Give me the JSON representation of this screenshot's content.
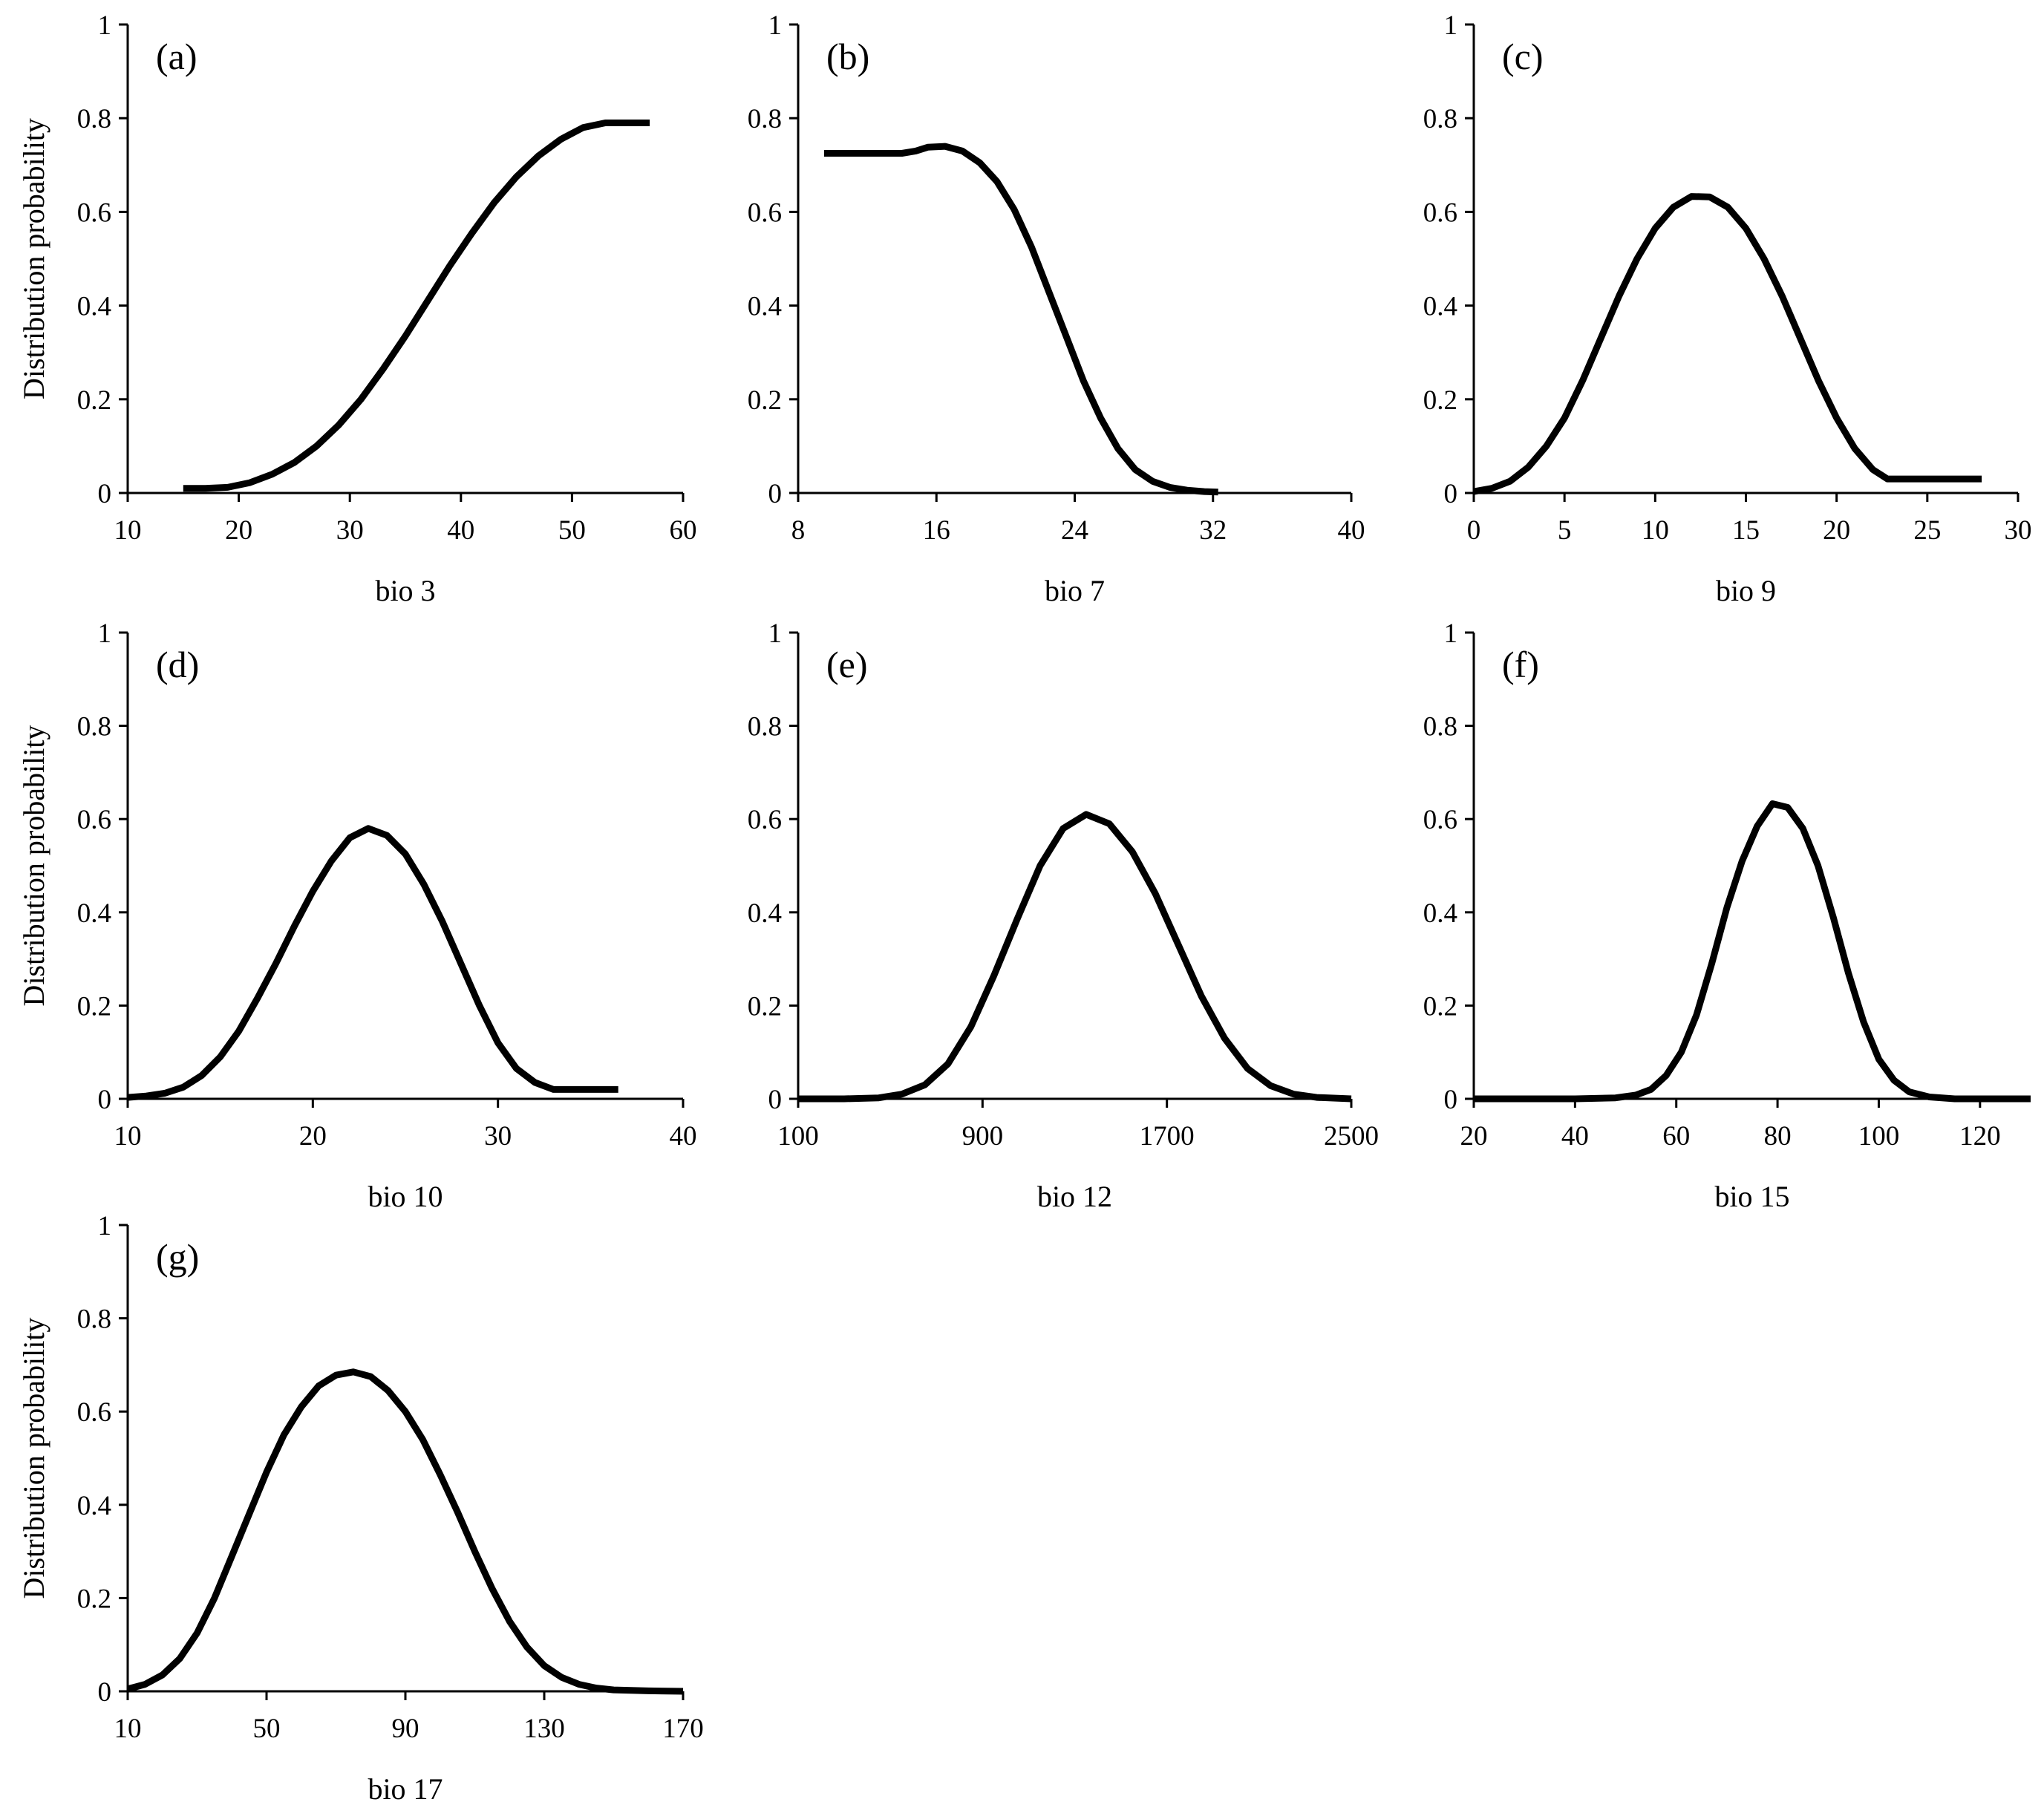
{
  "chart_data": [
    {
      "type": "line",
      "panel_label": "(a)",
      "xlabel": "bio 3",
      "ylabel": "Distribution probability",
      "xlim": [
        10,
        60
      ],
      "ylim": [
        0,
        1
      ],
      "xticks": [
        10,
        20,
        30,
        40,
        50,
        60
      ],
      "yticks": [
        0,
        0.2,
        0.4,
        0.6,
        0.8,
        1
      ],
      "xtick_labels": [
        "10",
        "20",
        "30",
        "40",
        "50",
        "60"
      ],
      "ytick_labels": [
        "0",
        "0.2",
        "0.4",
        "0.6",
        "0.8",
        "1"
      ],
      "x": [
        15,
        17,
        19,
        21,
        23,
        25,
        27,
        29,
        31,
        33,
        35,
        37,
        39,
        41,
        43,
        45,
        47,
        49,
        51,
        53,
        55,
        57
      ],
      "y": [
        0.01,
        0.01,
        0.012,
        0.022,
        0.04,
        0.065,
        0.1,
        0.145,
        0.2,
        0.265,
        0.335,
        0.41,
        0.485,
        0.555,
        0.62,
        0.675,
        0.72,
        0.755,
        0.78,
        0.79,
        0.79,
        0.79
      ]
    },
    {
      "type": "line",
      "panel_label": "(b)",
      "xlabel": "bio 7",
      "ylabel": "",
      "xlim": [
        8,
        40
      ],
      "ylim": [
        0,
        1
      ],
      "xticks": [
        8,
        16,
        24,
        32,
        40
      ],
      "yticks": [
        0,
        0.2,
        0.4,
        0.6,
        0.8,
        1
      ],
      "xtick_labels": [
        "8",
        "16",
        "24",
        "32",
        "40"
      ],
      "ytick_labels": [
        "0",
        "0.2",
        "0.4",
        "0.6",
        "0.8",
        "1"
      ],
      "x": [
        9.5,
        12,
        14,
        14.8,
        15.5,
        16.5,
        17.5,
        18.5,
        19.5,
        20.5,
        21.5,
        22.5,
        23.5,
        24.5,
        25.5,
        26.5,
        27.5,
        28.5,
        29.5,
        30.5,
        31.5,
        32.3
      ],
      "y": [
        0.725,
        0.725,
        0.725,
        0.73,
        0.738,
        0.74,
        0.73,
        0.705,
        0.665,
        0.605,
        0.525,
        0.43,
        0.335,
        0.24,
        0.16,
        0.095,
        0.05,
        0.025,
        0.012,
        0.006,
        0.003,
        0.002
      ]
    },
    {
      "type": "line",
      "panel_label": "(c)",
      "xlabel": "bio 9",
      "ylabel": "",
      "xlim": [
        0,
        30
      ],
      "ylim": [
        0,
        1
      ],
      "xticks": [
        0,
        5,
        10,
        15,
        20,
        25,
        30
      ],
      "yticks": [
        0,
        0.2,
        0.4,
        0.6,
        0.8,
        1
      ],
      "xtick_labels": [
        "0",
        "5",
        "10",
        "15",
        "20",
        "25",
        "30"
      ],
      "ytick_labels": [
        "0",
        "0.2",
        "0.4",
        "0.6",
        "0.8",
        "1"
      ],
      "x": [
        0,
        1,
        2,
        3,
        4,
        5,
        6,
        7,
        8,
        9,
        10,
        11,
        12,
        13,
        14,
        15,
        16,
        17,
        18,
        19,
        20,
        21,
        22,
        22.8,
        25,
        28
      ],
      "y": [
        0.003,
        0.01,
        0.025,
        0.055,
        0.1,
        0.16,
        0.24,
        0.33,
        0.42,
        0.5,
        0.565,
        0.61,
        0.633,
        0.632,
        0.61,
        0.565,
        0.5,
        0.42,
        0.33,
        0.24,
        0.16,
        0.095,
        0.05,
        0.03,
        0.03,
        0.03
      ]
    },
    {
      "type": "line",
      "panel_label": "(d)",
      "xlabel": "bio 10",
      "ylabel": "Distribution probability",
      "xlim": [
        10,
        40
      ],
      "ylim": [
        0,
        1
      ],
      "xticks": [
        10,
        20,
        30,
        40
      ],
      "yticks": [
        0,
        0.2,
        0.4,
        0.6,
        0.8,
        1
      ],
      "xtick_labels": [
        "10",
        "20",
        "30",
        "40"
      ],
      "ytick_labels": [
        "0",
        "0.2",
        "0.4",
        "0.6",
        "0.8",
        "1"
      ],
      "x": [
        10,
        11,
        12,
        13,
        14,
        15,
        16,
        17,
        18,
        19,
        20,
        21,
        22,
        23,
        24,
        25,
        26,
        27,
        28,
        29,
        30,
        31,
        32,
        33,
        34,
        35,
        36.5
      ],
      "y": [
        0.003,
        0.006,
        0.012,
        0.025,
        0.05,
        0.09,
        0.145,
        0.215,
        0.29,
        0.37,
        0.445,
        0.51,
        0.56,
        0.58,
        0.565,
        0.525,
        0.46,
        0.38,
        0.29,
        0.2,
        0.12,
        0.065,
        0.035,
        0.02,
        0.02,
        0.02,
        0.02
      ]
    },
    {
      "type": "line",
      "panel_label": "(e)",
      "xlabel": "bio 12",
      "ylabel": "",
      "xlim": [
        100,
        2500
      ],
      "ylim": [
        0,
        1
      ],
      "xticks": [
        100,
        900,
        1700,
        2500
      ],
      "yticks": [
        0,
        0.2,
        0.4,
        0.6,
        0.8,
        1
      ],
      "xtick_labels": [
        "100",
        "900",
        "1700",
        "2500"
      ],
      "ytick_labels": [
        "0",
        "0.2",
        "0.4",
        "0.6",
        "0.8",
        "1"
      ],
      "x": [
        100,
        300,
        450,
        550,
        650,
        750,
        850,
        950,
        1050,
        1150,
        1250,
        1350,
        1450,
        1550,
        1650,
        1750,
        1850,
        1950,
        2050,
        2150,
        2250,
        2350,
        2500
      ],
      "y": [
        0,
        0,
        0.002,
        0.01,
        0.03,
        0.075,
        0.155,
        0.265,
        0.385,
        0.5,
        0.58,
        0.61,
        0.59,
        0.53,
        0.44,
        0.33,
        0.22,
        0.13,
        0.065,
        0.028,
        0.01,
        0.003,
        0
      ]
    },
    {
      "type": "line",
      "panel_label": "(f)",
      "xlabel": "bio 15",
      "ylabel": "",
      "xlim": [
        20,
        130
      ],
      "ylim": [
        0,
        1
      ],
      "xticks": [
        20,
        40,
        60,
        80,
        100,
        120
      ],
      "yticks": [
        0,
        0.2,
        0.4,
        0.6,
        0.8,
        1
      ],
      "xtick_labels": [
        "20",
        "40",
        "60",
        "80",
        "100",
        "120"
      ],
      "ytick_labels": [
        "0",
        "0.2",
        "0.4",
        "0.6",
        "0.8",
        "1"
      ],
      "x": [
        20,
        40,
        48,
        52,
        55,
        58,
        61,
        64,
        67,
        70,
        73,
        76,
        79,
        82,
        85,
        88,
        91,
        94,
        97,
        100,
        103,
        106,
        110,
        115,
        130
      ],
      "y": [
        0,
        0,
        0.002,
        0.008,
        0.02,
        0.05,
        0.1,
        0.18,
        0.29,
        0.41,
        0.51,
        0.585,
        0.633,
        0.625,
        0.58,
        0.5,
        0.39,
        0.27,
        0.165,
        0.085,
        0.04,
        0.015,
        0.004,
        0,
        0
      ]
    },
    {
      "type": "line",
      "panel_label": "(g)",
      "xlabel": "bio 17",
      "ylabel": "Distribution probability",
      "xlim": [
        10,
        170
      ],
      "ylim": [
        0,
        1
      ],
      "xticks": [
        10,
        50,
        90,
        130,
        170
      ],
      "yticks": [
        0,
        0.2,
        0.4,
        0.6,
        0.8,
        1
      ],
      "xtick_labels": [
        "10",
        "50",
        "90",
        "130",
        "170"
      ],
      "ytick_labels": [
        "0",
        "0.2",
        "0.4",
        "0.6",
        "0.8",
        "1"
      ],
      "x": [
        10,
        15,
        20,
        25,
        30,
        35,
        40,
        45,
        50,
        55,
        60,
        65,
        70,
        75,
        80,
        85,
        90,
        95,
        100,
        105,
        110,
        115,
        120,
        125,
        130,
        135,
        140,
        145,
        150,
        160,
        170
      ],
      "y": [
        0.005,
        0.015,
        0.035,
        0.07,
        0.125,
        0.2,
        0.29,
        0.38,
        0.47,
        0.55,
        0.61,
        0.655,
        0.678,
        0.685,
        0.675,
        0.645,
        0.6,
        0.54,
        0.465,
        0.385,
        0.3,
        0.22,
        0.15,
        0.095,
        0.055,
        0.03,
        0.015,
        0.007,
        0.003,
        0.001,
        0
      ]
    }
  ]
}
